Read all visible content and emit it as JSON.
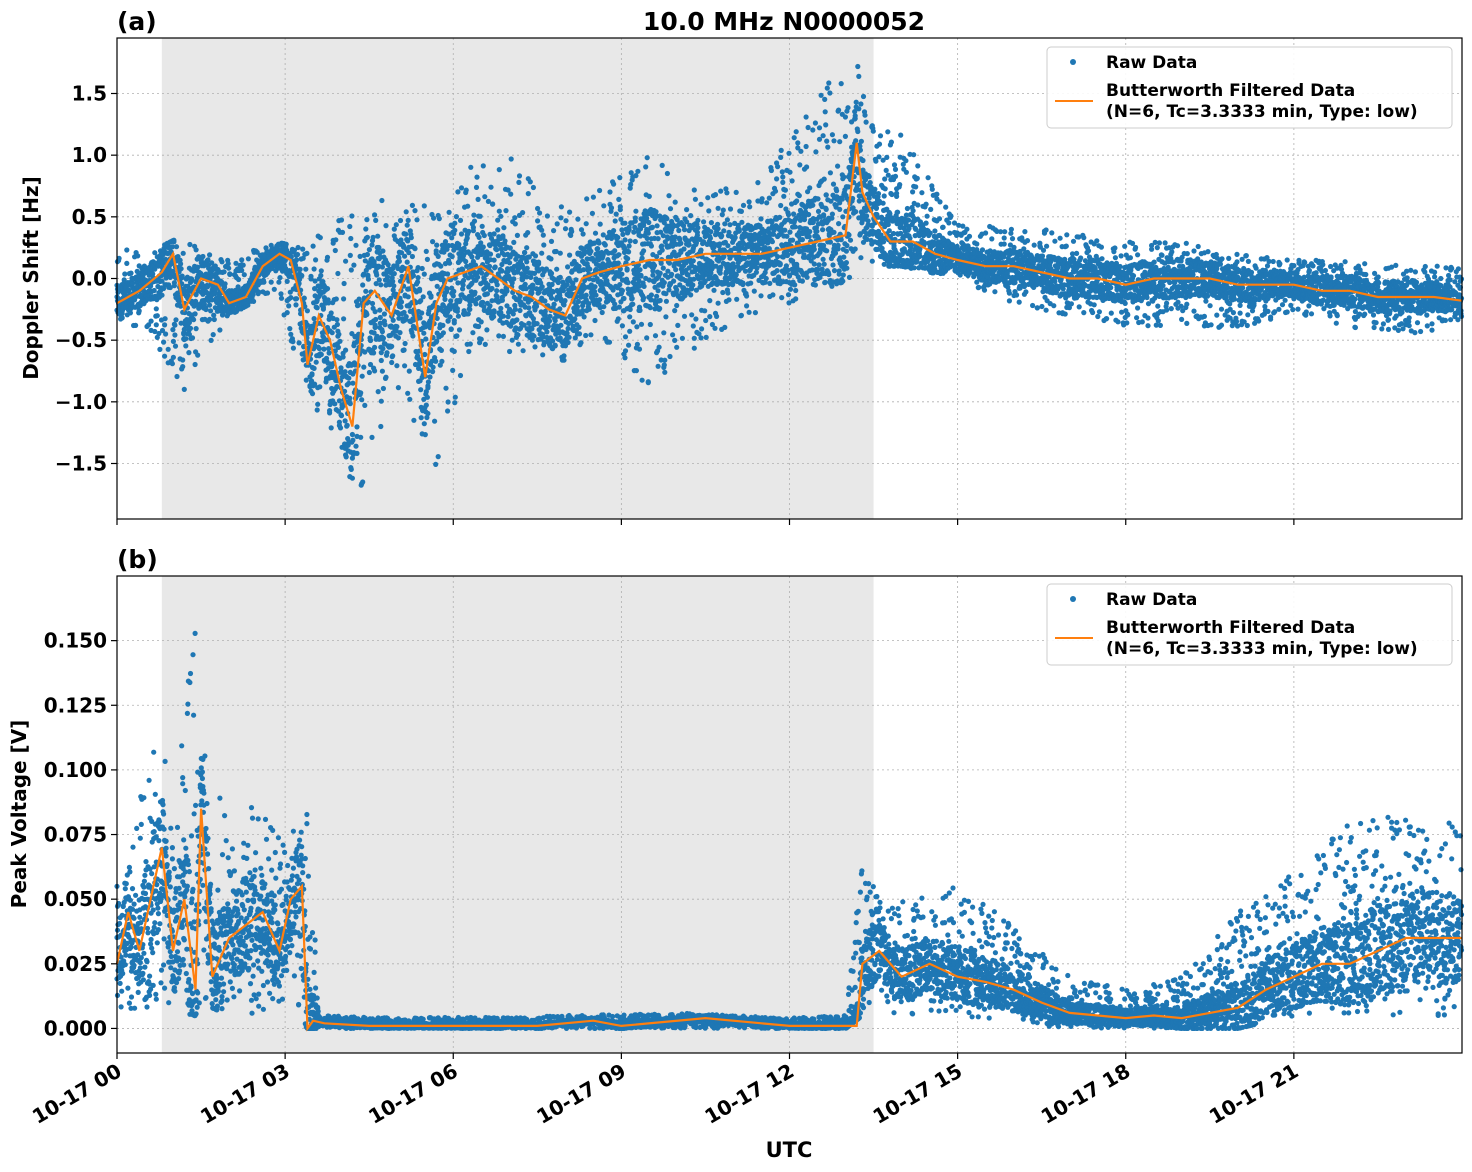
{
  "figure": {
    "title": "10.0 MHz N0000052",
    "xlabel": "UTC"
  },
  "legend": {
    "raw_label": "Raw Data",
    "filtered_label_line1": "Butterworth Filtered Data",
    "filtered_label_line2": "(N=6, Tc=3.3333 min, Type: low)"
  },
  "colors": {
    "raw": "#1f77b4",
    "filtered": "#ff7f0e",
    "shade": "#e8e8e8",
    "grid": "#b0b0b0"
  },
  "shaded_interval_hours": [
    0.8,
    13.5
  ],
  "x_ticks": [
    {
      "hour": 0,
      "label": "10-17 00"
    },
    {
      "hour": 3,
      "label": "10-17 03"
    },
    {
      "hour": 6,
      "label": "10-17 06"
    },
    {
      "hour": 9,
      "label": "10-17 09"
    },
    {
      "hour": 12,
      "label": "10-17 12"
    },
    {
      "hour": 15,
      "label": "10-17 15"
    },
    {
      "hour": 18,
      "label": "10-17 18"
    },
    {
      "hour": 21,
      "label": "10-17 21"
    }
  ],
  "chart_data": [
    {
      "type": "scatter",
      "panel_label": "(a)",
      "ylabel": "Doppler Shift [Hz]",
      "xlim_hours": [
        0,
        24
      ],
      "ylim": [
        -1.95,
        1.95
      ],
      "yticks": [
        {
          "v": 1.5,
          "label": "1.5"
        },
        {
          "v": 1.0,
          "label": "1.0"
        },
        {
          "v": 0.5,
          "label": "0.5"
        },
        {
          "v": 0.0,
          "label": "0.0"
        },
        {
          "v": -0.5,
          "label": "−0.5"
        },
        {
          "v": -1.0,
          "label": "−1.0"
        },
        {
          "v": -1.5,
          "label": "−1.5"
        }
      ],
      "grid": true,
      "legend_position": "top-right",
      "series": [
        {
          "name": "Raw Data",
          "kind": "scatter",
          "envelope_hours": [
            0,
            0.5,
            1.2,
            2.0,
            2.8,
            3.3,
            3.7,
            4.3,
            5.0,
            5.7,
            6.3,
            7.0,
            8.0,
            8.5,
            9.5,
            10.5,
            11.5,
            12.5,
            13.2,
            13.5,
            14.0,
            15.0,
            16.0,
            17.0,
            18.0,
            19.0,
            20.0,
            21.0,
            22.0,
            23.0,
            24.0
          ],
          "envelope_low": [
            -0.4,
            -0.4,
            -0.9,
            -0.3,
            -0.1,
            -0.8,
            -1.2,
            -1.75,
            -1.0,
            -1.6,
            -0.6,
            -0.6,
            -0.7,
            -0.5,
            -0.9,
            -0.5,
            -0.3,
            -0.1,
            0.0,
            0.1,
            0.1,
            0.0,
            -0.2,
            -0.3,
            -0.4,
            -0.4,
            -0.4,
            -0.3,
            -0.4,
            -0.45,
            -0.4
          ],
          "envelope_high": [
            0.25,
            0.2,
            0.35,
            0.15,
            0.3,
            0.25,
            0.4,
            0.7,
            0.6,
            0.6,
            0.9,
            1.0,
            0.6,
            0.7,
            1.0,
            0.7,
            0.8,
            1.5,
            1.8,
            1.2,
            1.2,
            0.5,
            0.4,
            0.4,
            0.3,
            0.3,
            0.2,
            0.15,
            0.15,
            0.1,
            0.1
          ]
        },
        {
          "name": "Butterworth Filtered Data\n(N=6, Tc=3.3333 min, Type: low)",
          "kind": "line",
          "x_hours": [
            0,
            0.4,
            0.8,
            1.0,
            1.2,
            1.5,
            1.8,
            2.0,
            2.3,
            2.6,
            2.9,
            3.1,
            3.3,
            3.4,
            3.6,
            3.8,
            4.0,
            4.2,
            4.4,
            4.6,
            4.9,
            5.2,
            5.5,
            5.7,
            5.9,
            6.2,
            6.5,
            6.8,
            7.1,
            7.4,
            7.7,
            8.0,
            8.3,
            8.6,
            9.0,
            9.5,
            10.0,
            10.5,
            11.0,
            11.5,
            12.0,
            12.5,
            13.0,
            13.2,
            13.3,
            13.5,
            13.8,
            14.2,
            14.6,
            15.0,
            15.5,
            16.0,
            16.5,
            17.0,
            17.5,
            18.0,
            18.5,
            19.0,
            19.5,
            20.0,
            20.5,
            21.0,
            21.5,
            22.0,
            22.5,
            23.0,
            23.5,
            24.0
          ],
          "y": [
            -0.2,
            -0.1,
            0.05,
            0.2,
            -0.25,
            0.0,
            -0.05,
            -0.2,
            -0.15,
            0.1,
            0.2,
            0.15,
            -0.2,
            -0.7,
            -0.3,
            -0.5,
            -0.9,
            -1.2,
            -0.2,
            -0.1,
            -0.3,
            0.1,
            -0.8,
            -0.2,
            0.0,
            0.05,
            0.1,
            0.0,
            -0.1,
            -0.15,
            -0.25,
            -0.3,
            0.0,
            0.05,
            0.1,
            0.15,
            0.15,
            0.2,
            0.2,
            0.2,
            0.25,
            0.3,
            0.35,
            1.1,
            0.7,
            0.5,
            0.3,
            0.3,
            0.2,
            0.15,
            0.1,
            0.1,
            0.05,
            0.0,
            0.0,
            -0.05,
            0.0,
            0.0,
            0.0,
            -0.05,
            -0.05,
            -0.05,
            -0.1,
            -0.1,
            -0.15,
            -0.15,
            -0.15,
            -0.18
          ]
        }
      ]
    },
    {
      "type": "scatter",
      "panel_label": "(b)",
      "ylabel": "Peak Voltage [V]",
      "xlim_hours": [
        0,
        24
      ],
      "ylim": [
        -0.0095,
        0.175
      ],
      "yticks": [
        {
          "v": 0.15,
          "label": "0.150"
        },
        {
          "v": 0.125,
          "label": "0.125"
        },
        {
          "v": 0.1,
          "label": "0.100"
        },
        {
          "v": 0.075,
          "label": "0.075"
        },
        {
          "v": 0.05,
          "label": "0.050"
        },
        {
          "v": 0.025,
          "label": "0.025"
        },
        {
          "v": 0.0,
          "label": "0.000"
        }
      ],
      "grid": true,
      "legend_position": "top-right",
      "series": [
        {
          "name": "Raw Data",
          "kind": "scatter",
          "envelope_hours": [
            0,
            0.3,
            0.7,
            1.0,
            1.4,
            1.5,
            2.0,
            2.5,
            3.0,
            3.4,
            3.6,
            5.0,
            8.0,
            10.0,
            12.0,
            13.0,
            13.3,
            13.6,
            14.0,
            15.0,
            16.0,
            17.0,
            18.0,
            19.0,
            20.0,
            21.0,
            22.0,
            23.0,
            24.0
          ],
          "envelope_low": [
            0.005,
            0.005,
            0.01,
            0.005,
            0.005,
            0.01,
            0.005,
            0.005,
            0.01,
            0.0,
            0.0,
            0.0,
            0.0,
            0.0,
            0.0,
            0.0,
            0.005,
            0.005,
            0.005,
            0.005,
            0.002,
            0.0,
            0.0,
            0.0,
            0.0,
            0.005,
            0.005,
            0.005,
            0.005
          ],
          "envelope_high": [
            0.06,
            0.08,
            0.12,
            0.09,
            0.16,
            0.11,
            0.08,
            0.09,
            0.07,
            0.097,
            0.005,
            0.004,
            0.005,
            0.006,
            0.004,
            0.005,
            0.065,
            0.05,
            0.05,
            0.055,
            0.04,
            0.02,
            0.015,
            0.02,
            0.045,
            0.06,
            0.08,
            0.09,
            0.08
          ]
        },
        {
          "name": "Butterworth Filtered Data\n(N=6, Tc=3.3333 min, Type: low)",
          "kind": "line",
          "x_hours": [
            0,
            0.2,
            0.4,
            0.6,
            0.8,
            1.0,
            1.2,
            1.4,
            1.5,
            1.7,
            2.0,
            2.3,
            2.6,
            2.9,
            3.1,
            3.3,
            3.4,
            3.5,
            3.7,
            4.5,
            6.0,
            7.5,
            8.5,
            9.0,
            10.5,
            12.0,
            13.2,
            13.3,
            13.6,
            14.0,
            14.5,
            15.0,
            15.5,
            16.0,
            16.5,
            17.0,
            17.5,
            18.0,
            18.5,
            19.0,
            19.5,
            20.0,
            20.5,
            21.0,
            21.5,
            22.0,
            22.5,
            23.0,
            23.5,
            24.0
          ],
          "y": [
            0.025,
            0.045,
            0.03,
            0.05,
            0.07,
            0.03,
            0.05,
            0.015,
            0.085,
            0.02,
            0.035,
            0.04,
            0.045,
            0.03,
            0.05,
            0.055,
            0.0,
            0.003,
            0.002,
            0.001,
            0.001,
            0.001,
            0.003,
            0.001,
            0.004,
            0.001,
            0.001,
            0.025,
            0.03,
            0.02,
            0.025,
            0.02,
            0.018,
            0.015,
            0.01,
            0.006,
            0.005,
            0.004,
            0.005,
            0.004,
            0.006,
            0.008,
            0.015,
            0.02,
            0.025,
            0.025,
            0.03,
            0.035,
            0.035,
            0.035
          ]
        }
      ]
    }
  ]
}
